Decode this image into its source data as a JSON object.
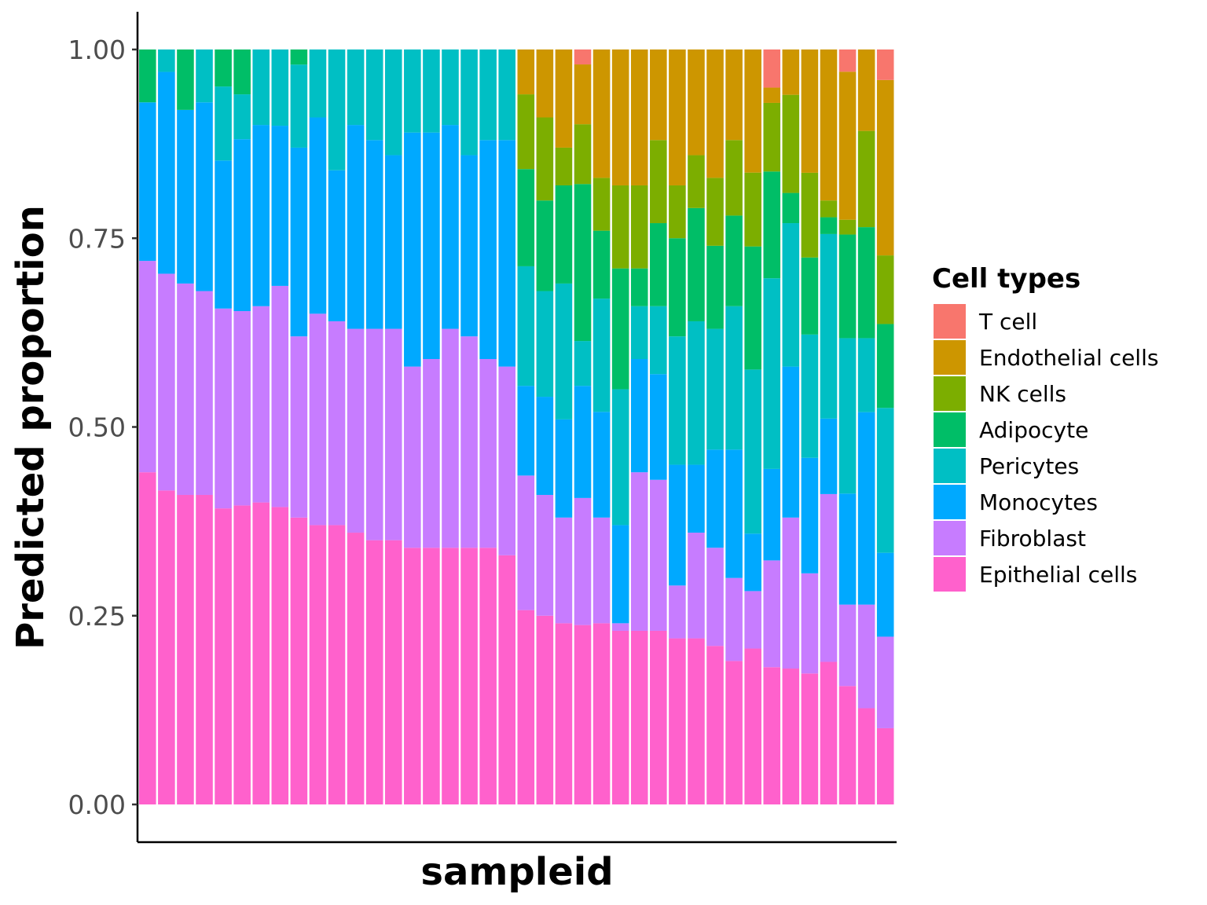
{
  "chart_data": {
    "type": "bar",
    "stacked": true,
    "xlabel": "sampleid",
    "ylabel": "Predicted proportion",
    "ylim": [
      0,
      1
    ],
    "yticks": [
      "0.00",
      "0.25",
      "0.50",
      "0.75",
      "1.00"
    ],
    "xtick_labels_shown": false,
    "grid": false,
    "legend": {
      "title": "Cell types",
      "placement": "right",
      "entries": [
        {
          "name": "T cell",
          "color": "#F8766D"
        },
        {
          "name": "Endothelial cells",
          "color": "#CD9600"
        },
        {
          "name": "NK cells",
          "color": "#7CAE00"
        },
        {
          "name": "Adipocyte",
          "color": "#00BE67"
        },
        {
          "name": "Pericytes",
          "color": "#00BFC4"
        },
        {
          "name": "Monocytes",
          "color": "#00A9FF"
        },
        {
          "name": "Fibroblast",
          "color": "#C77CFF"
        },
        {
          "name": "Epithelial cells",
          "color": "#FF61CC"
        }
      ]
    },
    "stack_order_bottom_to_top": [
      "Epithelial cells",
      "Fibroblast",
      "Monocytes",
      "Pericytes",
      "Adipocyte",
      "NK cells",
      "Endothelial cells",
      "T cell"
    ],
    "samples_count": 40,
    "series": [
      {
        "name": "Epithelial cells",
        "values": [
          0.44,
          0.42,
          0.41,
          0.41,
          0.4,
          0.4,
          0.4,
          0.39,
          0.38,
          0.37,
          0.37,
          0.36,
          0.35,
          0.35,
          0.34,
          0.34,
          0.34,
          0.34,
          0.34,
          0.33,
          0.26,
          0.25,
          0.24,
          0.24,
          0.24,
          0.23,
          0.23,
          0.23,
          0.22,
          0.22,
          0.21,
          0.19,
          0.19,
          0.18,
          0.18,
          0.17,
          0.17,
          0.16,
          0.13,
          0.1
        ]
      },
      {
        "name": "Fibroblast",
        "values": [
          0.28,
          0.29,
          0.28,
          0.27,
          0.27,
          0.26,
          0.26,
          0.29,
          0.24,
          0.28,
          0.27,
          0.27,
          0.28,
          0.28,
          0.24,
          0.25,
          0.29,
          0.28,
          0.25,
          0.25,
          0.18,
          0.16,
          0.14,
          0.17,
          0.14,
          0.01,
          0.21,
          0.2,
          0.07,
          0.14,
          0.13,
          0.11,
          0.07,
          0.14,
          0.2,
          0.13,
          0.2,
          0.11,
          0.14,
          0.12
        ]
      },
      {
        "name": "Monocytes",
        "values": [
          0.21,
          0.27,
          0.23,
          0.25,
          0.2,
          0.23,
          0.24,
          0.21,
          0.25,
          0.26,
          0.2,
          0.27,
          0.25,
          0.23,
          0.31,
          0.3,
          0.27,
          0.24,
          0.29,
          0.3,
          0.12,
          0.13,
          0.13,
          0.15,
          0.14,
          0.13,
          0.15,
          0.14,
          0.16,
          0.09,
          0.13,
          0.17,
          0.07,
          0.12,
          0.2,
          0.15,
          0.09,
          0.15,
          0.26,
          0.11
        ]
      },
      {
        "name": "Pericytes",
        "values": [
          0.0,
          0.03,
          0.0,
          0.07,
          0.1,
          0.06,
          0.1,
          0.1,
          0.11,
          0.09,
          0.16,
          0.1,
          0.12,
          0.14,
          0.11,
          0.11,
          0.1,
          0.14,
          0.12,
          0.12,
          0.16,
          0.14,
          0.18,
          0.06,
          0.15,
          0.18,
          0.07,
          0.09,
          0.17,
          0.19,
          0.16,
          0.19,
          0.2,
          0.25,
          0.19,
          0.16,
          0.22,
          0.21,
          0.1,
          0.19
        ]
      },
      {
        "name": "Adipocyte",
        "values": [
          0.07,
          0.0,
          0.08,
          0.0,
          0.05,
          0.06,
          0.0,
          0.0,
          0.02,
          0.0,
          0.0,
          0.0,
          0.0,
          0.0,
          0.0,
          0.0,
          0.0,
          0.0,
          0.0,
          0.0,
          0.13,
          0.12,
          0.13,
          0.21,
          0.09,
          0.16,
          0.05,
          0.11,
          0.13,
          0.15,
          0.11,
          0.12,
          0.15,
          0.14,
          0.04,
          0.1,
          0.02,
          0.14,
          0.15,
          0.11
        ]
      },
      {
        "name": "NK cells",
        "values": [
          0,
          0,
          0,
          0,
          0,
          0,
          0,
          0,
          0,
          0,
          0,
          0,
          0,
          0,
          0,
          0,
          0,
          0,
          0,
          0,
          0.1,
          0.11,
          0.05,
          0.08,
          0.07,
          0.11,
          0.11,
          0.11,
          0.07,
          0.07,
          0.09,
          0.1,
          0.09,
          0.09,
          0.13,
          0.11,
          0.02,
          0.02,
          0.13,
          0.09
        ]
      },
      {
        "name": "Endothelial cells",
        "values": [
          0,
          0,
          0,
          0,
          0,
          0,
          0,
          0,
          0,
          0,
          0,
          0,
          0,
          0,
          0,
          0,
          0,
          0,
          0,
          0,
          0.06,
          0.09,
          0.13,
          0.08,
          0.17,
          0.18,
          0.18,
          0.12,
          0.18,
          0.14,
          0.17,
          0.12,
          0.15,
          0.02,
          0.06,
          0.16,
          0.18,
          0.2,
          0.11,
          0.23
        ]
      },
      {
        "name": "T cell",
        "values": [
          0,
          0,
          0,
          0,
          0,
          0,
          0,
          0,
          0,
          0,
          0,
          0,
          0,
          0,
          0,
          0,
          0,
          0,
          0,
          0,
          0,
          0,
          0,
          0.02,
          0,
          0,
          0,
          0,
          0,
          0,
          0,
          0,
          0,
          0.05,
          0,
          0,
          0,
          0.03,
          0,
          0.04
        ]
      }
    ]
  }
}
